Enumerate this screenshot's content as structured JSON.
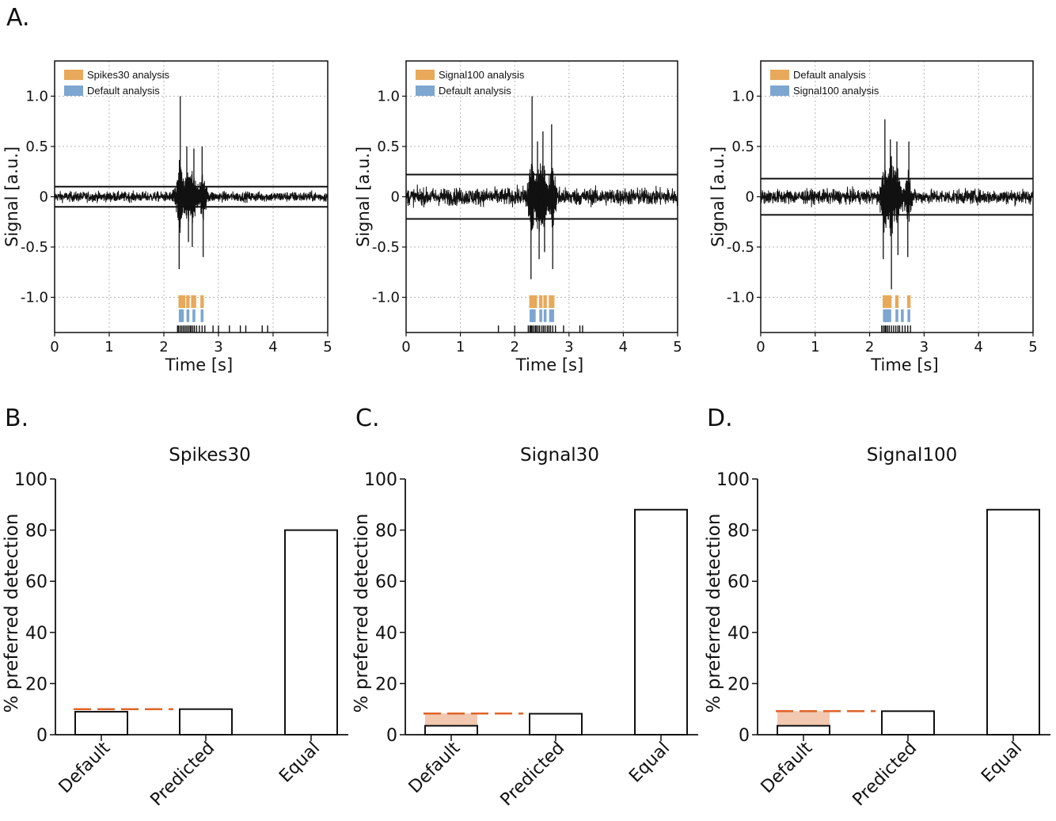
{
  "figure": {
    "panel_labels": [
      "A.",
      "B.",
      "C.",
      "D."
    ],
    "colors": {
      "orange": "#E8A95A",
      "blue": "#7DA6D0",
      "dash": "#E0642A",
      "shade": "#F2C9B0",
      "trace": "#111111"
    }
  },
  "chart_data": [
    {
      "type": "line",
      "panel": "A.",
      "xlabel": "Time [s]",
      "ylabel": "Signal [a.u.]",
      "xlim": [
        0,
        5
      ],
      "ylim": [
        -1.35,
        1.35
      ],
      "xticks": [
        0,
        1,
        2,
        3,
        4,
        5
      ],
      "yticks": [
        1.0,
        0.5,
        0,
        -0.5,
        -1.0
      ],
      "ytick_labels": [
        "1.0",
        "0.5",
        "0",
        "-0.5",
        "-1.0"
      ],
      "grid": true,
      "legend": [
        "Spikes30 analysis",
        "Default analysis"
      ],
      "legend_position": "top-left",
      "threshold": 0.1,
      "noise": 0.035,
      "bursts": [
        [
          2.3,
          1.0
        ],
        [
          2.28,
          -0.72
        ],
        [
          2.42,
          0.5
        ],
        [
          2.45,
          -0.45
        ],
        [
          2.55,
          0.48
        ],
        [
          2.52,
          -0.5
        ],
        [
          2.7,
          0.5
        ],
        [
          2.72,
          -0.6
        ]
      ],
      "events_top": [
        [
          2.3,
          2.32,
          2.34,
          2.36,
          2.44,
          2.53,
          2.56,
          2.7
        ]
      ],
      "events_mid": [
        [
          2.3,
          2.32,
          2.34,
          2.44,
          2.55,
          2.7
        ]
      ],
      "events_bottom": [
        2.25,
        2.27,
        2.3,
        2.33,
        2.36,
        2.39,
        2.42,
        2.45,
        2.48,
        2.5,
        2.53,
        2.56,
        2.6,
        2.65,
        2.7,
        2.75,
        2.9,
        3.0,
        3.2,
        3.4,
        3.5,
        3.8,
        3.9
      ]
    },
    {
      "type": "line",
      "panel": "",
      "xlabel": "Time [s]",
      "ylabel": "Signal [a.u.]",
      "xlim": [
        0,
        5
      ],
      "ylim": [
        -1.35,
        1.35
      ],
      "xticks": [
        0,
        1,
        2,
        3,
        4,
        5
      ],
      "yticks": [
        1.0,
        0.5,
        0,
        -0.5,
        -1.0
      ],
      "ytick_labels": [
        "1.0",
        "0.5",
        "0",
        "-0.5",
        "-1.0"
      ],
      "grid": true,
      "legend": [
        "Signal100 analysis",
        "Default analysis"
      ],
      "legend_position": "top-left",
      "threshold": 0.22,
      "noise": 0.06,
      "bursts": [
        [
          2.32,
          1.0
        ],
        [
          2.3,
          -0.82
        ],
        [
          2.42,
          0.55
        ],
        [
          2.45,
          -0.62
        ],
        [
          2.52,
          0.65
        ],
        [
          2.55,
          -0.55
        ],
        [
          2.68,
          0.72
        ],
        [
          2.7,
          -0.72
        ]
      ],
      "events_top": [
        [
          2.3,
          2.32,
          2.34,
          2.36,
          2.38,
          2.48,
          2.56,
          2.66,
          2.7
        ]
      ],
      "events_mid": [
        [
          2.3,
          2.32,
          2.34,
          2.36,
          2.48,
          2.56,
          2.66,
          2.7
        ]
      ],
      "events_bottom": [
        1.7,
        2.0,
        2.25,
        2.28,
        2.3,
        2.32,
        2.35,
        2.38,
        2.4,
        2.43,
        2.46,
        2.5,
        2.53,
        2.56,
        2.6,
        2.63,
        2.66,
        2.7,
        2.75,
        2.9,
        3.2,
        3.25
      ]
    },
    {
      "type": "line",
      "panel": "",
      "xlabel": "Time [s]",
      "ylabel": "Signal [a.u.]",
      "xlim": [
        0,
        5
      ],
      "ylim": [
        -1.35,
        1.35
      ],
      "xticks": [
        0,
        1,
        2,
        3,
        4,
        5
      ],
      "yticks": [
        1.0,
        0.5,
        0,
        -0.5,
        -1.0
      ],
      "ytick_labels": [
        "1.0",
        "0.5",
        "0",
        "-0.5",
        "-1.0"
      ],
      "grid": true,
      "legend": [
        "Default analysis",
        "Signal100 analysis"
      ],
      "legend_position": "top-left",
      "threshold": 0.18,
      "noise": 0.05,
      "bursts": [
        [
          2.28,
          0.77
        ],
        [
          2.25,
          -0.62
        ],
        [
          2.38,
          0.57
        ],
        [
          2.4,
          -0.92
        ],
        [
          2.5,
          0.55
        ],
        [
          2.52,
          -0.58
        ],
        [
          2.72,
          0.55
        ],
        [
          2.7,
          -0.6
        ]
      ],
      "events_top": [
        [
          2.27,
          2.29,
          2.31,
          2.33,
          2.35,
          2.37,
          2.5,
          2.72
        ]
      ],
      "events_mid": [
        [
          2.27,
          2.29,
          2.31,
          2.33,
          2.37,
          2.5,
          2.6,
          2.72
        ]
      ],
      "events_bottom": [
        2.22,
        2.25,
        2.28,
        2.3,
        2.33,
        2.36,
        2.4,
        2.44,
        2.48,
        2.52,
        2.55,
        2.6,
        2.65,
        2.7,
        2.75
      ]
    },
    {
      "type": "bar",
      "panel": "B.",
      "title": "Spikes30",
      "categories": [
        "Default",
        "Predicted",
        "Equal"
      ],
      "values": [
        9,
        10,
        80
      ],
      "ylabel": "% preferred detection",
      "ylim": [
        0,
        100
      ],
      "yticks": [
        0,
        20,
        40,
        60,
        80,
        100
      ],
      "chance_line": 10,
      "chance_band": [
        9,
        10
      ]
    },
    {
      "type": "bar",
      "panel": "C.",
      "title": "Signal30",
      "categories": [
        "Default",
        "Predicted",
        "Equal"
      ],
      "values": [
        3.5,
        8.2,
        88
      ],
      "ylabel": "% preferred detection",
      "ylim": [
        0,
        100
      ],
      "yticks": [
        0,
        20,
        40,
        60,
        80,
        100
      ],
      "chance_line": 8.3,
      "chance_band": [
        3.5,
        8.3
      ]
    },
    {
      "type": "bar",
      "panel": "D.",
      "title": "Signal100",
      "categories": [
        "Default",
        "Predicted",
        "Equal"
      ],
      "values": [
        3.5,
        9.2,
        88
      ],
      "ylabel": "% preferred detection",
      "ylim": [
        0,
        100
      ],
      "yticks": [
        0,
        20,
        40,
        60,
        80,
        100
      ],
      "chance_line": 9.2,
      "chance_band": [
        3.5,
        9.2
      ]
    }
  ]
}
